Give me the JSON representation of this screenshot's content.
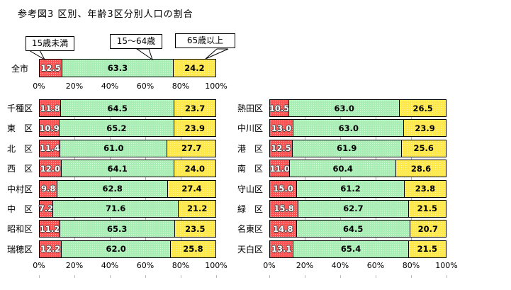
{
  "title": "参考図3 区別、年齢3区分別人口の割合",
  "callouts": [
    {
      "label": "15歳未満"
    },
    {
      "label": "15〜64歳"
    },
    {
      "label": "65歳以上"
    }
  ],
  "colors": {
    "under15": "#ff5252",
    "age15to64": "#a9eeb4",
    "over65": "#ffe84a",
    "grid": "#aeaeae",
    "bar_border": "#000000",
    "under15_text": "#ffffff",
    "other_text": "#000000"
  },
  "chart_data": {
    "type": "bar",
    "variant": "100pct-stacked-horizontal",
    "title": "参考図3 区別、年齢3区分別人口の割合",
    "series_names": [
      "15歳未満",
      "15〜64歳",
      "65歳以上"
    ],
    "series_keys": [
      "under15",
      "age15to64",
      "over65"
    ],
    "x_axis": {
      "ticks": [
        "0%",
        "20%",
        "40%",
        "60%",
        "80%",
        "100%"
      ],
      "range": [
        0,
        100
      ],
      "grid": true
    },
    "gridline_pcts": [
      20,
      40,
      60,
      80
    ],
    "city_total": {
      "rows": [
        {
          "label": "全市",
          "values": [
            12.5,
            63.3,
            24.2
          ]
        }
      ]
    },
    "left_chart": {
      "rows": [
        {
          "label": "千種区",
          "values": [
            11.8,
            64.5,
            23.7
          ]
        },
        {
          "label": "東　区",
          "values": [
            10.9,
            65.2,
            23.9
          ]
        },
        {
          "label": "北　区",
          "values": [
            11.4,
            61.0,
            27.7
          ]
        },
        {
          "label": "西　区",
          "values": [
            12.0,
            64.1,
            24.0
          ]
        },
        {
          "label": "中村区",
          "values": [
            9.8,
            62.8,
            27.4
          ]
        },
        {
          "label": "中　区",
          "values": [
            7.2,
            71.6,
            21.2
          ]
        },
        {
          "label": "昭和区",
          "values": [
            11.2,
            65.3,
            23.5
          ]
        },
        {
          "label": "瑞穂区",
          "values": [
            12.2,
            62.0,
            25.8
          ]
        }
      ]
    },
    "right_chart": {
      "rows": [
        {
          "label": "熱田区",
          "values": [
            10.5,
            63.0,
            26.5
          ]
        },
        {
          "label": "中川区",
          "values": [
            13.0,
            63.0,
            23.9
          ]
        },
        {
          "label": "港　区",
          "values": [
            12.5,
            61.9,
            25.6
          ]
        },
        {
          "label": "南　区",
          "values": [
            11.0,
            60.4,
            28.6
          ]
        },
        {
          "label": "守山区",
          "values": [
            15.0,
            61.2,
            23.8
          ]
        },
        {
          "label": "緑　区",
          "values": [
            15.8,
            62.7,
            21.5
          ]
        },
        {
          "label": "名東区",
          "values": [
            14.8,
            64.5,
            20.7
          ]
        },
        {
          "label": "天白区",
          "values": [
            13.1,
            65.4,
            21.5
          ]
        }
      ]
    }
  }
}
